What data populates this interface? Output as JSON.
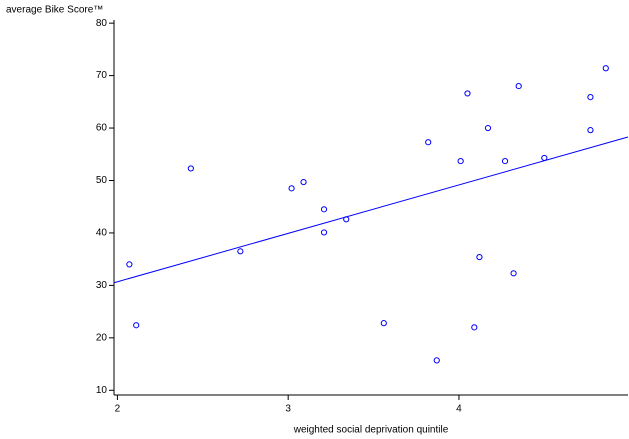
{
  "chart_data": {
    "type": "scatter",
    "y_label": "average Bike Score™",
    "x_label": "weighted social deprivation quintile",
    "points": {
      "color": "#0000ff",
      "x": [
        2.07,
        2.11,
        2.43,
        2.72,
        3.02,
        3.09,
        3.21,
        3.21,
        3.34,
        3.56,
        3.82,
        3.87,
        4.01,
        4.05,
        4.09,
        4.12,
        4.17,
        4.27,
        4.32,
        4.35,
        4.5,
        4.77,
        4.77,
        4.86
      ],
      "values": [
        34.0,
        22.4,
        52.3,
        36.5,
        48.5,
        49.7,
        44.5,
        40.1,
        42.6,
        22.8,
        57.3,
        15.7,
        53.7,
        66.6,
        22.0,
        35.4,
        60.0,
        53.7,
        32.3,
        68.0,
        54.3,
        65.9,
        59.6,
        71.4
      ]
    },
    "fit_line": {
      "color": "#0000ff",
      "x": [
        1.98,
        4.99
      ],
      "values": [
        30.5,
        58.3
      ]
    },
    "xlim": [
      1.98,
      4.99
    ],
    "xticks": [
      2,
      3,
      4
    ],
    "ylim": [
      9.1,
      80.6
    ],
    "yticks": [
      10,
      20,
      30,
      40,
      50,
      60,
      70,
      80
    ]
  }
}
